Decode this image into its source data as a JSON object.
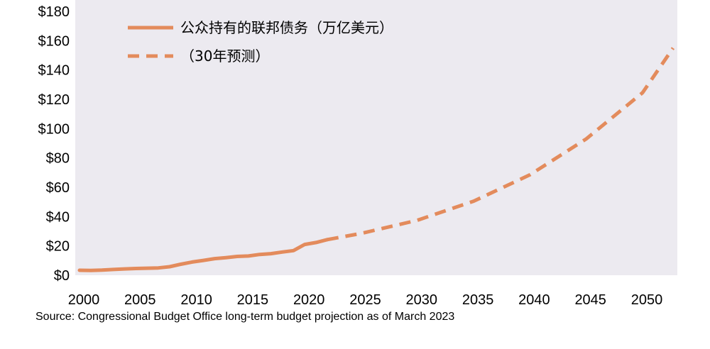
{
  "chart_data": {
    "type": "line",
    "ylim": [
      0,
      180
    ],
    "xlim": [
      2000,
      2053
    ],
    "y_ticks": [
      "$0",
      "$20",
      "$40",
      "$60",
      "$80",
      "$100",
      "$120",
      "$140",
      "$160",
      "$180"
    ],
    "y_tick_values": [
      0,
      20,
      40,
      60,
      80,
      100,
      120,
      140,
      160,
      180
    ],
    "x_ticks": [
      "2000",
      "2005",
      "2010",
      "2015",
      "2020",
      "2025",
      "2030",
      "2035",
      "2040",
      "2045",
      "2050"
    ],
    "x_tick_values": [
      2000,
      2005,
      2010,
      2015,
      2020,
      2025,
      2030,
      2035,
      2040,
      2045,
      2050
    ],
    "grid": false,
    "legend_position": "top-left",
    "colors": {
      "line": "#E38B5C",
      "plot_bg": "#ECEAF0"
    },
    "series": [
      {
        "name": "公众持有的联邦债务（万亿美元）",
        "style": "solid",
        "x": [
          2000,
          2001,
          2002,
          2003,
          2004,
          2005,
          2006,
          2007,
          2008,
          2009,
          2010,
          2011,
          2012,
          2013,
          2014,
          2015,
          2016,
          2017,
          2018,
          2019,
          2020,
          2021,
          2022
        ],
        "values": [
          3.4,
          3.3,
          3.5,
          3.9,
          4.3,
          4.6,
          4.8,
          5.0,
          5.8,
          7.5,
          9.0,
          10.1,
          11.3,
          12.0,
          12.8,
          13.1,
          14.2,
          14.7,
          15.8,
          16.8,
          21.0,
          22.3,
          24.3
        ]
      },
      {
        "name": "（30年预测）",
        "style": "dashed",
        "x": [
          2022,
          2025,
          2030,
          2035,
          2040,
          2045,
          2050,
          2053
        ],
        "values": [
          24.3,
          28.5,
          37.5,
          50.5,
          68.5,
          93.0,
          124.5,
          155.0
        ]
      }
    ]
  },
  "source_note": "Source: Congressional Budget Office long-term budget projection as of March 2023"
}
